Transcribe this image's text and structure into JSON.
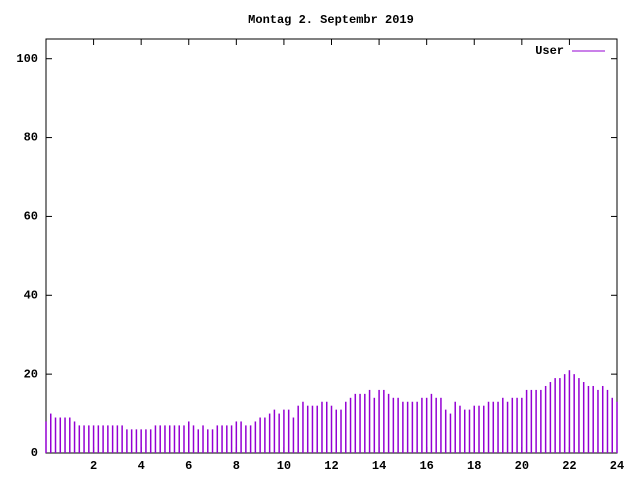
{
  "chart_data": {
    "type": "impulses",
    "title": "Montag 2. Septembr 2019",
    "x": [
      0,
      0.2,
      0.4,
      0.6,
      0.8,
      1,
      1.2,
      1.4,
      1.6,
      1.8,
      2,
      2.2,
      2.4,
      2.6,
      2.8,
      3,
      3.2,
      3.4,
      3.6,
      3.8,
      4,
      4.2,
      4.4,
      4.6,
      4.8,
      5,
      5.2,
      5.4,
      5.6,
      5.8,
      6,
      6.2,
      6.4,
      6.6,
      6.8,
      7,
      7.2,
      7.4,
      7.6,
      7.8,
      8,
      8.2,
      8.4,
      8.6,
      8.8,
      9,
      9.2,
      9.4,
      9.6,
      9.8,
      10,
      10.2,
      10.4,
      10.6,
      10.8,
      11,
      11.2,
      11.4,
      11.6,
      11.8,
      12,
      12.2,
      12.4,
      12.6,
      12.8,
      13,
      13.2,
      13.4,
      13.6,
      13.8,
      14,
      14.2,
      14.4,
      14.6,
      14.8,
      15,
      15.2,
      15.4,
      15.6,
      15.8,
      16,
      16.2,
      16.4,
      16.6,
      16.8,
      17,
      17.2,
      17.4,
      17.6,
      17.8,
      18,
      18.2,
      18.4,
      18.6,
      18.8,
      19,
      19.2,
      19.4,
      19.6,
      19.8,
      20,
      20.2,
      20.4,
      20.6,
      20.8,
      21,
      21.2,
      21.4,
      21.6,
      21.8,
      22,
      22.2,
      22.4,
      22.6,
      22.8,
      23,
      23.2,
      23.4,
      23.6,
      23.8,
      24
    ],
    "series": [
      {
        "name": "User",
        "color": "#9400d3",
        "values": [
          8,
          10,
          9,
          9,
          9,
          9,
          8,
          7,
          7,
          7,
          7,
          7,
          7,
          7,
          7,
          7,
          7,
          6,
          6,
          6,
          6,
          6,
          6,
          7,
          7,
          7,
          7,
          7,
          7,
          7,
          8,
          7,
          6,
          7,
          6,
          6,
          7,
          7,
          7,
          7,
          8,
          8,
          7,
          7,
          8,
          9,
          9,
          10,
          11,
          10,
          11,
          11,
          9,
          12,
          13,
          12,
          12,
          12,
          13,
          13,
          12,
          11,
          11,
          13,
          14,
          15,
          15,
          15,
          16,
          14,
          16,
          16,
          15,
          14,
          14,
          13,
          13,
          13,
          13,
          14,
          14,
          15,
          14,
          14,
          11,
          10,
          13,
          12,
          11,
          11,
          12,
          12,
          12,
          13,
          13,
          13,
          14,
          13,
          14,
          14,
          14,
          16,
          16,
          16,
          16,
          17,
          18,
          19,
          19,
          20,
          21,
          20,
          19,
          18,
          17,
          17,
          16,
          17,
          16,
          14,
          13
        ]
      }
    ],
    "xlim": [
      0,
      24
    ],
    "ylim": [
      0,
      105
    ],
    "xticks": [
      2,
      4,
      6,
      8,
      10,
      12,
      14,
      16,
      18,
      20,
      22,
      24
    ],
    "yticks": [
      0,
      20,
      40,
      60,
      80,
      100
    ],
    "legend": "top-right"
  }
}
